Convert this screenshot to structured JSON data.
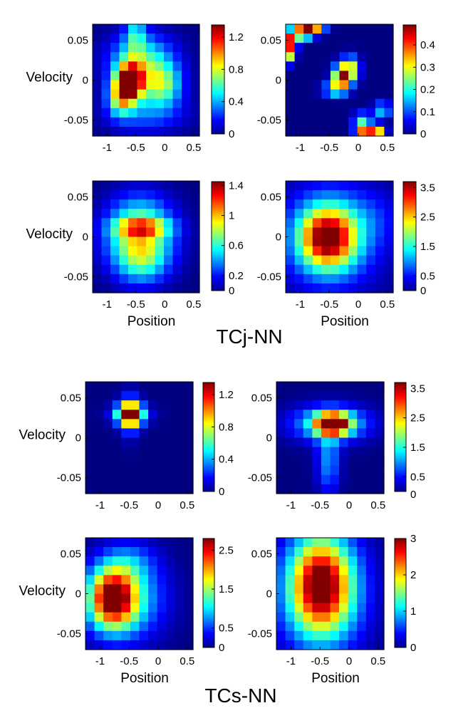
{
  "figure": {
    "group_titles": [
      "TCj-NN",
      "TCs-NN"
    ]
  },
  "chart_data": [
    {
      "type": "heatmap",
      "group": "TCj-NN",
      "row": 1,
      "col": 1,
      "xlabel": "",
      "ylabel": "Velocity",
      "xticks": [
        "-1",
        "-0.5",
        "0",
        "0.5"
      ],
      "yticks": [
        "0.05",
        "0",
        "-0.05"
      ],
      "colorbar": {
        "min": 0,
        "max": 1.35,
        "ticks": [
          "0",
          "0.4",
          "0.8",
          "1.2"
        ]
      },
      "grid": {
        "rows": 12,
        "cols": 12
      },
      "blobs": [
        {
          "cx": 4.3,
          "cy": 6.1,
          "sx": 1.0,
          "sy": 1.3,
          "amp": 1.3
        },
        {
          "cx": 3.2,
          "cy": 7.6,
          "sx": 1.0,
          "sy": 1.4,
          "amp": 0.8
        },
        {
          "cx": 5.5,
          "cy": 4.0,
          "sx": 2.5,
          "sy": 2.0,
          "amp": 0.6
        },
        {
          "cx": 4.8,
          "cy": 1.0,
          "sx": 0.8,
          "sy": 1.5,
          "amp": 0.4
        },
        {
          "cx": 7.8,
          "cy": 6.5,
          "sx": 1.5,
          "sy": 1.5,
          "amp": 0.6
        },
        {
          "cx": 6.0,
          "cy": 9.5,
          "sx": 3.0,
          "sy": 1.5,
          "amp": 0.3
        }
      ]
    },
    {
      "type": "heatmap",
      "group": "TCj-NN",
      "row": 1,
      "col": 2,
      "xlabel": "",
      "ylabel": "",
      "xticks": [
        "-1",
        "-0.5",
        "0",
        "0.5"
      ],
      "yticks": [
        "0.05",
        "0",
        "-0.05"
      ],
      "colorbar": {
        "min": 0,
        "max": 0.49,
        "ticks": [
          "0",
          "0.1",
          "0.2",
          "0.3",
          "0.4"
        ]
      },
      "grid": {
        "rows": 12,
        "cols": 12
      },
      "blobs": [
        {
          "cx": 0.5,
          "cy": 2.0,
          "sx": 0.5,
          "sy": 0.8,
          "amp": 0.45
        },
        {
          "cx": 1.8,
          "cy": 0.9,
          "sx": 0.8,
          "sy": 0.5,
          "amp": 0.4
        },
        {
          "cx": 3.0,
          "cy": 0.3,
          "sx": 0.9,
          "sy": 0.5,
          "amp": 0.4
        },
        {
          "cx": 0.5,
          "cy": 3.5,
          "sx": 0.4,
          "sy": 0.6,
          "amp": 0.2
        },
        {
          "cx": 6.2,
          "cy": 5.8,
          "sx": 0.7,
          "sy": 0.9,
          "amp": 0.42
        },
        {
          "cx": 7.2,
          "cy": 4.8,
          "sx": 0.7,
          "sy": 0.9,
          "amp": 0.3
        },
        {
          "cx": 5.3,
          "cy": 7.0,
          "sx": 0.9,
          "sy": 0.4,
          "amp": 0.25
        },
        {
          "cx": 8.8,
          "cy": 11.3,
          "sx": 0.7,
          "sy": 0.4,
          "amp": 0.45
        },
        {
          "cx": 10.2,
          "cy": 11.4,
          "sx": 0.6,
          "sy": 0.4,
          "amp": 0.35
        },
        {
          "cx": 10.8,
          "cy": 9.2,
          "sx": 0.7,
          "sy": 0.6,
          "amp": 0.18
        },
        {
          "cx": 8.5,
          "cy": 10.2,
          "sx": 0.7,
          "sy": 0.5,
          "amp": 0.2
        }
      ]
    },
    {
      "type": "heatmap",
      "group": "TCj-NN",
      "row": 2,
      "col": 1,
      "xlabel": "Position",
      "ylabel": "Velocity",
      "xticks": [
        "-1",
        "-0.5",
        "0",
        "0.5"
      ],
      "yticks": [
        "0.05",
        "0",
        "-0.05"
      ],
      "colorbar": {
        "min": 0,
        "max": 1.45,
        "ticks": [
          "0",
          "0.2",
          "0.6",
          "1",
          "1.4"
        ]
      },
      "grid": {
        "rows": 12,
        "cols": 12
      },
      "blobs": [
        {
          "cx": 5.5,
          "cy": 5.0,
          "sx": 2.2,
          "sy": 0.55,
          "amp": 0.55
        },
        {
          "cx": 5.3,
          "cy": 5.8,
          "sx": 2.5,
          "sy": 2.6,
          "amp": 0.95
        },
        {
          "cx": 5.5,
          "cy": 9.0,
          "sx": 2.0,
          "sy": 1.6,
          "amp": 0.3
        }
      ]
    },
    {
      "type": "heatmap",
      "group": "TCj-NN",
      "row": 2,
      "col": 2,
      "xlabel": "Position",
      "ylabel": "",
      "xticks": [
        "-1",
        "-0.5",
        "0",
        "0.5"
      ],
      "yticks": [
        "0.05",
        "0",
        "-0.05"
      ],
      "colorbar": {
        "min": 0,
        "max": 3.7,
        "ticks": [
          "0",
          "0.5",
          "1.5",
          "2.5",
          "3.5"
        ]
      },
      "grid": {
        "rows": 12,
        "cols": 12
      },
      "blobs": [
        {
          "cx": 4.7,
          "cy": 6.1,
          "sx": 2.1,
          "sy": 2.2,
          "amp": 3.0
        },
        {
          "cx": 5.0,
          "cy": 6.0,
          "sx": 3.8,
          "sy": 3.8,
          "amp": 1.2
        },
        {
          "cx": 10.0,
          "cy": 4.0,
          "sx": 2.0,
          "sy": 2.0,
          "amp": 0.3
        }
      ]
    },
    {
      "type": "heatmap",
      "group": "TCs-NN",
      "row": 1,
      "col": 1,
      "xlabel": "",
      "ylabel": "Velocity",
      "xticks": [
        "-1",
        "-0.5",
        "0",
        "0.5"
      ],
      "yticks": [
        "0.05",
        "0",
        "-0.05"
      ],
      "colorbar": {
        "min": 0,
        "max": 1.35,
        "ticks": [
          "0",
          "0.4",
          "0.8",
          "1.2"
        ]
      },
      "grid": {
        "rows": 12,
        "cols": 12
      },
      "blobs": [
        {
          "cx": 5.0,
          "cy": 3.5,
          "sx": 0.9,
          "sy": 0.9,
          "amp": 1.3
        },
        {
          "cx": 5.0,
          "cy": 3.5,
          "sx": 1.6,
          "sy": 0.7,
          "amp": 0.3
        },
        {
          "cx": 5.0,
          "cy": 3.5,
          "sx": 0.7,
          "sy": 1.8,
          "amp": 0.25
        }
      ]
    },
    {
      "type": "heatmap",
      "group": "TCs-NN",
      "row": 1,
      "col": 2,
      "xlabel": "",
      "ylabel": "",
      "xticks": [
        "-1",
        "-0.5",
        "0",
        "0.5"
      ],
      "yticks": [
        "0.05",
        "0",
        "-0.05"
      ],
      "colorbar": {
        "min": 0,
        "max": 3.7,
        "ticks": [
          "0.5",
          "1.5",
          "2.5",
          "3.5"
        ]
      },
      "colorbar_bottom_tick": "0",
      "grid": {
        "rows": 12,
        "cols": 12
      },
      "blobs": [
        {
          "cx": 6.3,
          "cy": 4.5,
          "sx": 1.3,
          "sy": 0.8,
          "amp": 3.5
        },
        {
          "cx": 6.0,
          "cy": 4.5,
          "sx": 3.0,
          "sy": 1.3,
          "amp": 1.5
        },
        {
          "cx": 5.8,
          "cy": 8.5,
          "sx": 0.9,
          "sy": 2.5,
          "amp": 1.0
        }
      ]
    },
    {
      "type": "heatmap",
      "group": "TCs-NN",
      "row": 2,
      "col": 1,
      "xlabel": "Position",
      "ylabel": "Velocity",
      "xticks": [
        "-1",
        "-0.5",
        "0",
        "0.5"
      ],
      "yticks": [
        "0.05",
        "0",
        "-0.05"
      ],
      "colorbar": {
        "min": 0,
        "max": 2.8,
        "ticks": [
          "0",
          "0.5",
          "1.5",
          "2.5"
        ]
      },
      "grid": {
        "rows": 12,
        "cols": 12
      },
      "blobs": [
        {
          "cx": 3.0,
          "cy": 6.5,
          "sx": 1.8,
          "sy": 2.2,
          "amp": 2.4
        },
        {
          "cx": 4.5,
          "cy": 6.5,
          "sx": 3.0,
          "sy": 3.0,
          "amp": 1.0
        },
        {
          "cx": 5.0,
          "cy": 2.5,
          "sx": 2.0,
          "sy": 1.5,
          "amp": 0.4
        }
      ]
    },
    {
      "type": "heatmap",
      "group": "TCs-NN",
      "row": 2,
      "col": 2,
      "xlabel": "Position",
      "ylabel": "",
      "xticks": [
        "-1",
        "-0.5",
        "0",
        "0.5"
      ],
      "yticks": [
        "0.05",
        "0",
        "-0.05"
      ],
      "colorbar": {
        "min": 0,
        "max": 3.0,
        "ticks": [
          "0",
          "1",
          "2",
          "3"
        ]
      },
      "grid": {
        "rows": 12,
        "cols": 12
      },
      "blobs": [
        {
          "cx": 5.0,
          "cy": 5.0,
          "sx": 2.3,
          "sy": 3.5,
          "amp": 2.4
        },
        {
          "cx": 5.0,
          "cy": 6.0,
          "sx": 3.5,
          "sy": 4.5,
          "amp": 1.0
        }
      ]
    }
  ]
}
